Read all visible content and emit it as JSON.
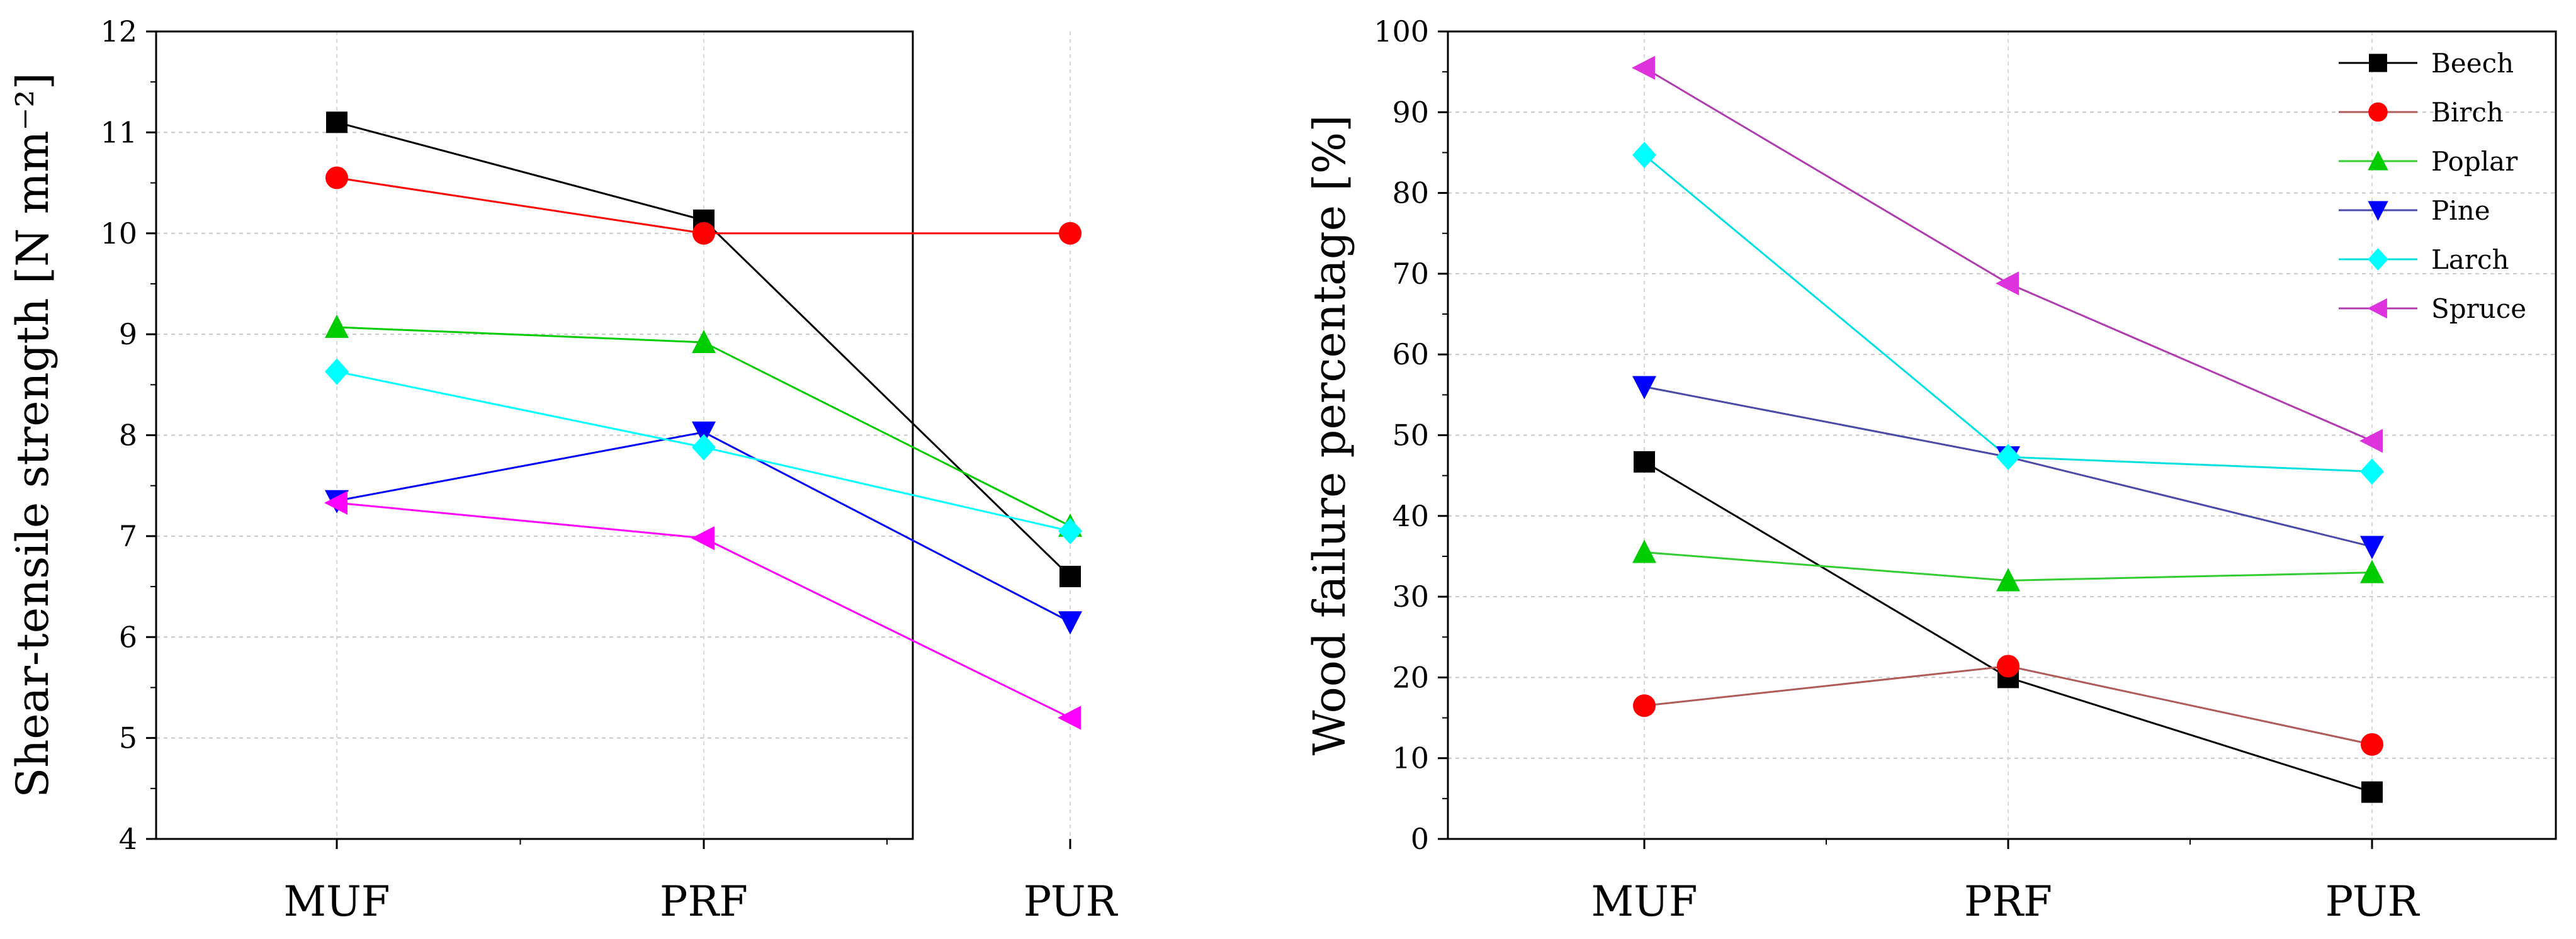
{
  "chart_data": [
    {
      "type": "line",
      "title": "",
      "xlabel": "",
      "ylabel": "Shear-tensile strength [N mm⁻²]",
      "categories": [
        "MUF",
        "PRF",
        "PUR"
      ],
      "ylim": [
        4,
        12
      ],
      "yticks": [
        4,
        5,
        6,
        7,
        8,
        9,
        10,
        11,
        12
      ],
      "grid": true,
      "legend": false,
      "series": [
        {
          "name": "Beech",
          "color": "#000000",
          "marker": "square",
          "values": [
            11.1,
            10.13,
            6.6
          ]
        },
        {
          "name": "Birch",
          "color": "#ff0000",
          "marker": "circle",
          "values": [
            10.55,
            10.0,
            10.0
          ]
        },
        {
          "name": "Poplar",
          "color": "#00cc00",
          "marker": "triangle-up",
          "values": [
            9.07,
            8.92,
            7.1
          ]
        },
        {
          "name": "Pine",
          "color": "#0000ff",
          "marker": "triangle-down",
          "values": [
            7.35,
            8.03,
            6.15
          ]
        },
        {
          "name": "Larch",
          "color": "#00ffff",
          "marker": "diamond",
          "values": [
            8.63,
            7.88,
            7.05
          ]
        },
        {
          "name": "Spruce",
          "color": "#ff00ff",
          "marker": "triangle-left",
          "values": [
            7.33,
            6.98,
            5.2
          ]
        }
      ]
    },
    {
      "type": "line",
      "title": "",
      "xlabel": "",
      "ylabel": "Wood failure percentage [%]",
      "categories": [
        "MUF",
        "PRF",
        "PUR"
      ],
      "ylim": [
        0,
        100
      ],
      "yticks": [
        0,
        10,
        20,
        30,
        40,
        50,
        60,
        70,
        80,
        90,
        100
      ],
      "grid": true,
      "legend": true,
      "legend_position": "top-right",
      "series": [
        {
          "name": "Beech",
          "color": "#000000",
          "line_color": "#000000",
          "marker": "square",
          "values": [
            46.7,
            20.0,
            5.8
          ]
        },
        {
          "name": "Birch",
          "color": "#ff0000",
          "line_color": "#b05a5a",
          "marker": "circle",
          "values": [
            16.5,
            21.4,
            11.7
          ]
        },
        {
          "name": "Poplar",
          "color": "#00cc00",
          "line_color": "#33cc33",
          "marker": "triangle-up",
          "values": [
            35.5,
            32.0,
            33.0
          ]
        },
        {
          "name": "Pine",
          "color": "#0000ff",
          "line_color": "#4a4aa8",
          "marker": "triangle-down",
          "values": [
            56.0,
            47.3,
            36.2
          ]
        },
        {
          "name": "Larch",
          "color": "#00ffff",
          "line_color": "#00e0e0",
          "marker": "diamond",
          "values": [
            84.7,
            47.3,
            45.5
          ]
        },
        {
          "name": "Spruce",
          "color": "#dd33dd",
          "line_color": "#b03cb0",
          "marker": "triangle-left",
          "values": [
            95.5,
            68.8,
            49.3
          ]
        }
      ]
    }
  ]
}
